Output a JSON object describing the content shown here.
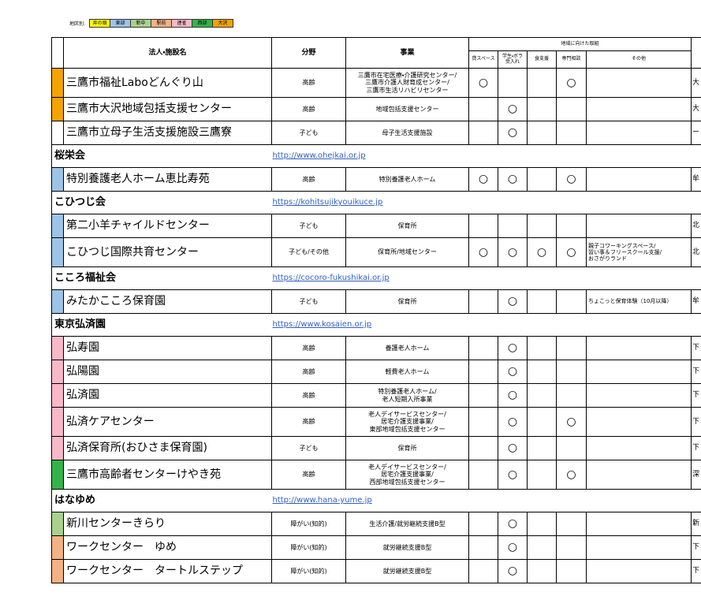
{
  "legend": {
    "label": "地区別:",
    "areas": [
      {
        "name": "井の頭",
        "color": "#ffff00"
      },
      {
        "name": "東部",
        "color": "#9dc3e6"
      },
      {
        "name": "新中",
        "color": "#a9d18e"
      },
      {
        "name": "駅前",
        "color": "#f4b183"
      },
      {
        "name": "連雀",
        "color": "#f8b8c8"
      },
      {
        "name": "西部",
        "color": "#33b34a"
      },
      {
        "name": "大沢",
        "color": "#f4a300"
      }
    ]
  },
  "table": {
    "header": {
      "name": "法人・施設名",
      "field": "分野",
      "business": "事業",
      "group": "地域に向けた取組",
      "rental": "貸スペース",
      "students": "学生・ボラ\n受入れ",
      "food": "食支援",
      "consult": "専門相談",
      "other": "その他"
    },
    "rows": [
      {
        "color": "#f4a300",
        "name": "三鷹市福祉Laboどんぐり山",
        "field": "高齢",
        "business": "三鷹市在宅医療・介護研究センター/\n三鷹市介護人財育成センター/\n三鷹市生活リハビリセンター",
        "rental": "○",
        "consult": "○",
        "region": "大"
      },
      {
        "color": "#f4a300",
        "name": "三鷹市大沢地域包括支援センター",
        "field": "高齢",
        "business": "地域包括支援センター",
        "students": "○",
        "region": "大"
      },
      {
        "name": "三鷹市立母子生活支援施設三鷹寮",
        "field": "子ども",
        "business": "母子生活支援施設",
        "students": "○",
        "region": "ー"
      },
      {
        "group": "桜栄会",
        "url": " http://www.ohejkai.or.jp"
      },
      {
        "color": "#9dc3e6",
        "name": "特別養護老人ホーム恵比寿苑",
        "field": "高齢",
        "business": "特別養護老人ホーム",
        "rental": "○",
        "students": "○",
        "consult": "○",
        "region": "牟"
      },
      {
        "group": "こひつじ会",
        "url": "https://kohitsujikyouikuce.jp"
      },
      {
        "color": "#9dc3e6",
        "name": "第二小羊チャイルドセンター",
        "field": "子ども",
        "business": "保育所",
        "region": "北"
      },
      {
        "color": "#9dc3e6",
        "name": "こひつじ国際共育センター",
        "field": "子ども/その他",
        "business": "保育所/地域センター",
        "rental": "○",
        "students": "○",
        "food": "○",
        "consult": "○",
        "other": "親子コワーキングスペース/\n習い事＆フリースクール支援/\nおさがりランド",
        "region": "北"
      },
      {
        "group": "こころ福祉会",
        "url": "https://cocoro-fukushikai.or.jp"
      },
      {
        "color": "#9dc3e6",
        "name": "みたかこころ保育園",
        "field": "子ども",
        "business": "保育所",
        "students": "○",
        "other": "ちょこっと保育体験（10月以降）",
        "region": "牟"
      },
      {
        "group": "東京弘済園",
        "url": "https://www.kosaien.or.jp"
      },
      {
        "color": "#f8b8c8",
        "name": "弘寿園",
        "field": "高齢",
        "business": "養護老人ホーム",
        "students": "○",
        "region": "下"
      },
      {
        "color": "#f8b8c8",
        "name": "弘陽園",
        "field": "高齢",
        "business": "軽費老人ホーム",
        "students": "○",
        "region": "下"
      },
      {
        "color": "#f8b8c8",
        "name": "弘済園",
        "field": "高齢",
        "business": "特別養護老人ホーム/\n老人短期入所事業",
        "students": "○",
        "region": "下"
      },
      {
        "color": "#f8b8c8",
        "name": "弘済ケアセンター",
        "field": "高齢",
        "business": "老人デイサービスセンター/\n居宅介護支援事業/\n東部地域包括支援センター",
        "students": "○",
        "consult": "○",
        "region": "下"
      },
      {
        "color": "#f8b8c8",
        "name": "弘済保育所(おひさま保育園)",
        "field": "子ども",
        "business": "保育所",
        "students": "○",
        "region": "下"
      },
      {
        "color": "#33b34a",
        "name": "三鷹市高齢者センターけやき苑",
        "field": "高齢",
        "business": "老人デイサービスセンター/\n居宅介護支援事業/\n西部地域包括支援センター",
        "students": "○",
        "consult": "○",
        "region": "深"
      },
      {
        "group": "はなゆめ",
        "url": "http://www.hana-yume.jp"
      },
      {
        "color": "#a9d18e",
        "name": "新川センターきらり",
        "field": "障がい(知的)",
        "business": "生活介護/就労継続支援B型",
        "students": "○",
        "region": "新"
      },
      {
        "color": "#f4b183",
        "name": "ワークセンター　ゆめ",
        "field": "障がい(知的)",
        "business": "就労継続支援B型",
        "students": "○",
        "region": "下"
      },
      {
        "color": "#f4b183",
        "name": "ワークセンター　タートルステップ",
        "field": "障がい(知的)",
        "business": "就労継続支援B型",
        "students": "○",
        "region": "下"
      }
    ]
  }
}
